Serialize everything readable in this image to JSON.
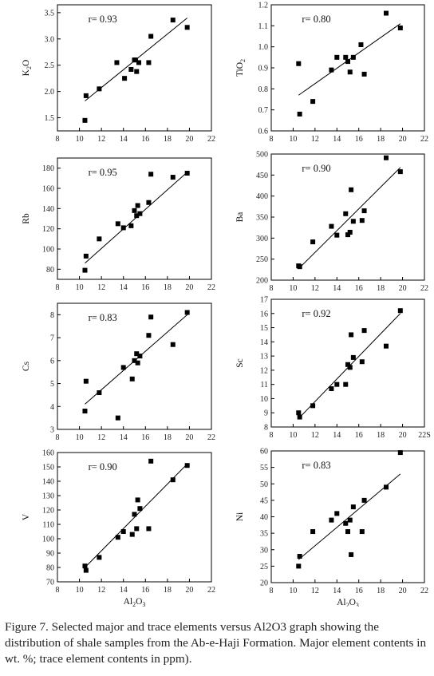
{
  "caption": {
    "text": "Figure 7. Selected major and trace elements versus Al2O3 graph showing the distribution of shale samples from the Ab-e-Haji Formation. Major element contents in wt. %; trace element contents in ppm)."
  },
  "chart_data": [
    {
      "type": "scatter",
      "ylabel": "K2O",
      "r_label": "r= 0.93",
      "xlim": [
        8,
        22
      ],
      "ylim": [
        1.25,
        3.65
      ],
      "xticks": [
        8,
        10,
        12,
        14,
        16,
        18,
        20,
        22
      ],
      "yticks": [
        1.5,
        2.0,
        2.5,
        3.0,
        3.5
      ],
      "ytick_labels": [
        "1.5",
        "2.0",
        "2.5",
        "3.0",
        "3.5"
      ],
      "x": [
        10.5,
        10.6,
        11.8,
        13.4,
        14.1,
        14.7,
        15.0,
        15.1,
        15.2,
        15.4,
        16.3,
        16.5,
        18.5,
        19.8
      ],
      "y": [
        1.45,
        1.92,
        2.05,
        2.55,
        2.25,
        2.42,
        2.6,
        2.6,
        2.38,
        2.55,
        2.55,
        3.05,
        3.36,
        3.22
      ],
      "trend": [
        [
          10.5,
          1.82
        ],
        [
          19.8,
          3.4
        ]
      ]
    },
    {
      "type": "scatter",
      "ylabel": "TiO2",
      "r_label": "r= 0.80",
      "xlim": [
        8,
        22
      ],
      "ylim": [
        0.6,
        1.2
      ],
      "xticks": [
        8,
        10,
        12,
        14,
        16,
        18,
        20,
        22
      ],
      "yticks": [
        0.6,
        0.7,
        0.8,
        0.9,
        1.0,
        1.1,
        1.2
      ],
      "ytick_labels": [
        "0.6",
        "0.7",
        "0.8",
        "0.9",
        "1.0",
        "1.1",
        "1.2"
      ],
      "x": [
        10.5,
        10.6,
        11.8,
        13.5,
        14.0,
        14.8,
        15.0,
        15.2,
        15.5,
        16.2,
        16.5,
        18.5,
        19.8
      ],
      "y": [
        0.92,
        0.68,
        0.74,
        0.89,
        0.95,
        0.95,
        0.93,
        0.88,
        0.95,
        1.01,
        0.87,
        1.16,
        1.09
      ],
      "trend": [
        [
          10.5,
          0.77
        ],
        [
          19.8,
          1.11
        ]
      ]
    },
    {
      "type": "scatter",
      "ylabel": "Rb",
      "r_label": "r= 0.95",
      "xlim": [
        8,
        22
      ],
      "ylim": [
        70,
        190
      ],
      "xticks": [
        8,
        10,
        12,
        14,
        16,
        18,
        20,
        22
      ],
      "yticks": [
        80,
        100,
        120,
        140,
        160,
        180
      ],
      "ytick_labels": [
        "80",
        "100",
        "120",
        "140",
        "160",
        "180"
      ],
      "x": [
        10.5,
        10.6,
        11.8,
        13.5,
        14.0,
        14.7,
        15.0,
        15.2,
        15.3,
        15.5,
        16.3,
        16.5,
        18.5,
        19.8
      ],
      "y": [
        79,
        93,
        110,
        125,
        121,
        123,
        138,
        133,
        143,
        135,
        146,
        174,
        171,
        175
      ],
      "trend": [
        [
          10.5,
          86
        ],
        [
          19.8,
          176
        ]
      ]
    },
    {
      "type": "scatter",
      "ylabel": "Ba",
      "r_label": "r= 0.90",
      "xlim": [
        8,
        22
      ],
      "ylim": [
        200,
        500
      ],
      "xticks": [
        8,
        10,
        12,
        14,
        16,
        18,
        20,
        22
      ],
      "yticks": [
        200,
        250,
        300,
        350,
        400,
        450,
        500
      ],
      "ytick_labels": [
        "200",
        "250",
        "300",
        "350",
        "400",
        "450",
        "500"
      ],
      "x": [
        10.5,
        10.6,
        11.8,
        13.5,
        14.0,
        14.8,
        15.0,
        15.2,
        15.3,
        15.5,
        16.3,
        16.5,
        18.5,
        19.8
      ],
      "y": [
        234,
        232,
        291,
        328,
        307,
        358,
        308,
        314,
        415,
        340,
        342,
        365,
        491,
        458
      ],
      "trend": [
        [
          10.5,
          227
        ],
        [
          19.8,
          468
        ]
      ]
    },
    {
      "type": "scatter",
      "ylabel": "Cs",
      "r_label": "r= 0.83",
      "xlim": [
        8,
        22
      ],
      "ylim": [
        3,
        8.5
      ],
      "xticks": [
        8,
        10,
        12,
        14,
        16,
        18,
        20,
        22
      ],
      "yticks": [
        3,
        4,
        5,
        6,
        7,
        8
      ],
      "ytick_labels": [
        "3",
        "4",
        "5",
        "6",
        "7",
        "8"
      ],
      "x": [
        10.5,
        10.6,
        11.8,
        13.5,
        14.0,
        14.8,
        15.0,
        15.2,
        15.3,
        15.5,
        16.3,
        16.5,
        18.5,
        19.8
      ],
      "y": [
        3.8,
        5.1,
        4.6,
        3.5,
        5.7,
        5.2,
        6.0,
        6.3,
        5.9,
        6.2,
        7.1,
        7.9,
        6.7,
        8.1
      ],
      "trend": [
        [
          10.5,
          4.1
        ],
        [
          19.8,
          8.0
        ]
      ]
    },
    {
      "type": "scatter",
      "ylabel": "Sc",
      "r_label": "r= 0.92",
      "xlim": [
        8,
        22
      ],
      "ylim": [
        8,
        17
      ],
      "xticks": [
        8,
        10,
        12,
        14,
        16,
        18,
        20,
        22
      ],
      "xtick_labels": [
        "8",
        "10",
        "12",
        "14",
        "16",
        "18",
        "20",
        "22S"
      ],
      "yticks": [
        8,
        9,
        10,
        11,
        12,
        13,
        14,
        15,
        16,
        17
      ],
      "ytick_labels": [
        "8",
        "9",
        "10",
        "11",
        "12",
        "13",
        "14",
        "15",
        "16",
        "17"
      ],
      "x": [
        10.5,
        10.6,
        11.8,
        13.5,
        14.0,
        14.8,
        15.0,
        15.2,
        15.3,
        15.5,
        16.3,
        16.5,
        18.5,
        19.8
      ],
      "y": [
        9.0,
        8.7,
        9.5,
        10.7,
        11.0,
        11.0,
        12.4,
        12.2,
        14.5,
        12.9,
        12.6,
        14.8,
        13.7,
        16.2
      ],
      "trend": [
        [
          10.5,
          8.6
        ],
        [
          19.8,
          16.0
        ]
      ]
    },
    {
      "type": "scatter",
      "ylabel": "V",
      "xlabel": "Al2O3",
      "r_label": "r= 0.90",
      "xlim": [
        8,
        22
      ],
      "ylim": [
        70,
        160
      ],
      "xticks": [
        8,
        10,
        12,
        14,
        16,
        18,
        20,
        22
      ],
      "yticks": [
        70,
        80,
        90,
        100,
        110,
        120,
        130,
        140,
        150,
        160
      ],
      "ytick_labels": [
        "70",
        "80",
        "90",
        "100",
        "110",
        "120",
        "130",
        "140",
        "150",
        "160"
      ],
      "x": [
        10.5,
        10.6,
        11.8,
        13.5,
        14.0,
        14.8,
        15.0,
        15.2,
        15.3,
        15.5,
        16.3,
        16.5,
        18.5,
        19.8
      ],
      "y": [
        81,
        78,
        87,
        101,
        105,
        103,
        117,
        107,
        127,
        121,
        107,
        154,
        141,
        151
      ],
      "trend": [
        [
          10.5,
          80
        ],
        [
          19.8,
          152
        ]
      ]
    },
    {
      "type": "scatter",
      "ylabel": "Ni",
      "xlabel": "Al2O3",
      "r_label": "r= 0.83",
      "xlim": [
        8,
        22
      ],
      "ylim": [
        20,
        60
      ],
      "xticks": [
        8,
        10,
        12,
        14,
        16,
        18,
        20,
        22
      ],
      "yticks": [
        20,
        25,
        30,
        35,
        40,
        45,
        50,
        55,
        60
      ],
      "ytick_labels": [
        "20",
        "25",
        "30",
        "35",
        "40",
        "45",
        "50",
        "55",
        "60"
      ],
      "x": [
        10.5,
        10.6,
        11.8,
        13.5,
        14.0,
        14.8,
        15.0,
        15.2,
        15.3,
        15.5,
        16.3,
        16.5,
        18.5,
        19.8
      ],
      "y": [
        25,
        28,
        35.5,
        39,
        41,
        38,
        35.5,
        39,
        28.5,
        43,
        35.5,
        45,
        49,
        59.5
      ],
      "trend": [
        [
          10.5,
          27
        ],
        [
          19.8,
          53
        ]
      ]
    }
  ]
}
